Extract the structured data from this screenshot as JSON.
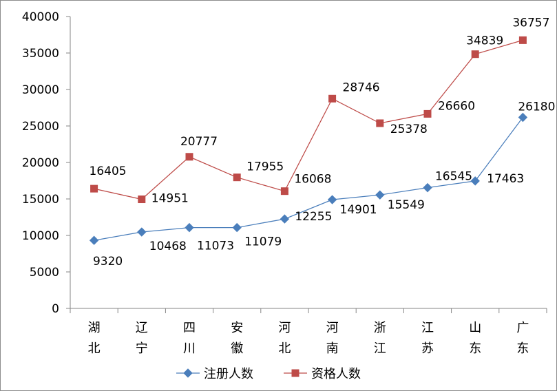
{
  "chart_data": {
    "type": "line",
    "categories": [
      "湖北",
      "辽宁",
      "四川",
      "安徽",
      "河北",
      "河南",
      "浙江",
      "江苏",
      "山东",
      "广东"
    ],
    "series": [
      {
        "name": "注册人数",
        "values": [
          9320,
          10468,
          11073,
          11079,
          12255,
          14901,
          15549,
          16545,
          17463,
          26180
        ],
        "color": "#4a7ebb",
        "marker": "diamond"
      },
      {
        "name": "资格人数",
        "values": [
          16405,
          14951,
          20777,
          17955,
          16068,
          28746,
          25378,
          26660,
          34839,
          36757
        ],
        "color": "#be4b48",
        "marker": "square"
      }
    ],
    "ylim": [
      0,
      40000
    ],
    "yticks": [
      0,
      5000,
      10000,
      15000,
      20000,
      25000,
      30000,
      35000,
      40000
    ],
    "grid": false,
    "legend": "bottom-center"
  }
}
